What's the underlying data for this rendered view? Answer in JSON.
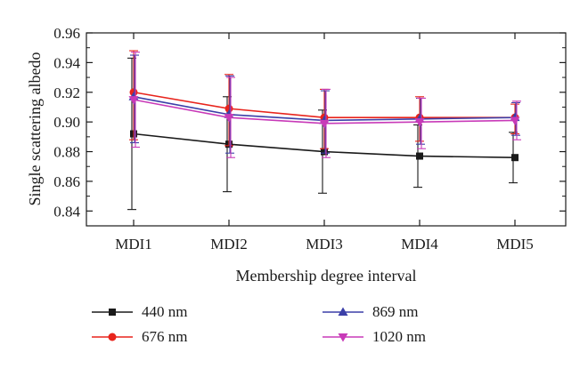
{
  "chart_data": {
    "type": "line",
    "xlabel": "Membership degree interval",
    "ylabel": "Single scattering albedo",
    "categories": [
      "MDI1",
      "MDI2",
      "MDI3",
      "MDI4",
      "MDI5"
    ],
    "ylim": [
      0.83,
      0.96
    ],
    "yticks": [
      "0.84",
      "0.86",
      "0.88",
      "0.90",
      "0.92",
      "0.94",
      "0.96"
    ],
    "grid": false,
    "legend_position": "bottom",
    "series": [
      {
        "name": "440 nm",
        "color": "#1a1a1a",
        "marker": "square",
        "values": [
          0.892,
          0.885,
          0.88,
          0.877,
          0.876
        ],
        "err_low": [
          0.841,
          0.853,
          0.852,
          0.856,
          0.859
        ],
        "err_high": [
          0.943,
          0.917,
          0.908,
          0.898,
          0.893
        ]
      },
      {
        "name": "676 nm",
        "color": "#e8241c",
        "marker": "circle",
        "values": [
          0.92,
          0.909,
          0.903,
          0.903,
          0.903
        ],
        "err_low": [
          0.888,
          0.884,
          0.882,
          0.887,
          0.892
        ],
        "err_high": [
          0.948,
          0.932,
          0.922,
          0.917,
          0.912
        ]
      },
      {
        "name": "869 nm",
        "color": "#3b3fa8",
        "marker": "triangle-up",
        "values": [
          0.917,
          0.905,
          0.901,
          0.902,
          0.903
        ],
        "err_low": [
          0.886,
          0.879,
          0.879,
          0.885,
          0.891
        ],
        "err_high": [
          0.945,
          0.931,
          0.921,
          0.916,
          0.913
        ]
      },
      {
        "name": "1020 nm",
        "color": "#c83ab8",
        "marker": "triangle-down",
        "values": [
          0.915,
          0.903,
          0.899,
          0.9,
          0.901
        ],
        "err_low": [
          0.883,
          0.876,
          0.876,
          0.882,
          0.888
        ],
        "err_high": [
          0.947,
          0.93,
          0.922,
          0.916,
          0.914
        ]
      }
    ]
  }
}
